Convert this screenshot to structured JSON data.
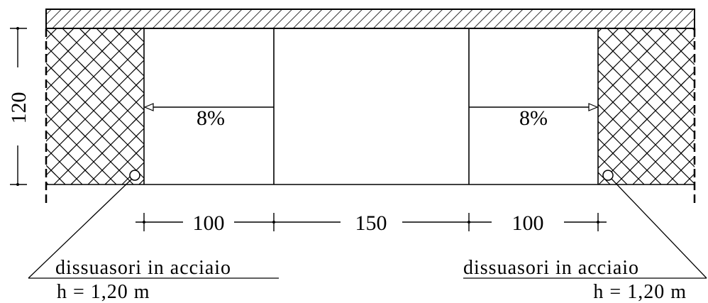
{
  "dimensions": {
    "height": "120",
    "left_ramp": "100",
    "center": "150",
    "right_ramp": "100"
  },
  "slopes": {
    "left": "8%",
    "right": "8%"
  },
  "labels": {
    "left": {
      "line1": "dissuasori in acciaio",
      "line2": "h = 1,20 m"
    },
    "right": {
      "line1": "dissuasori in acciaio",
      "line2": "h = 1,20 m"
    }
  }
}
